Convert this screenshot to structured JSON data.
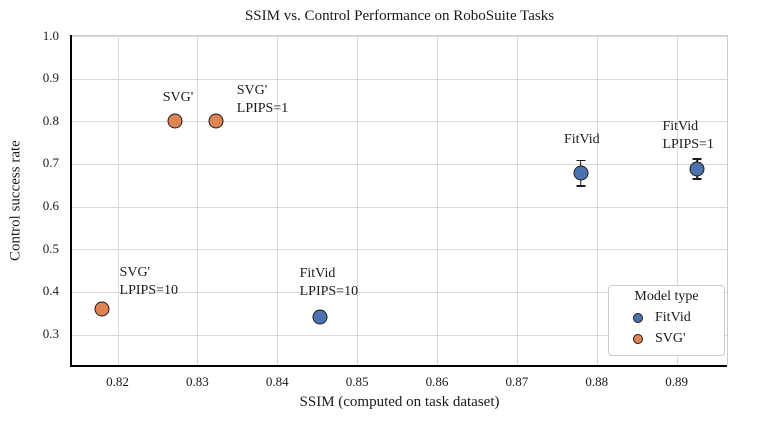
{
  "figure": {
    "title": "SSIM vs. Control Performance on RoboSuite Tasks",
    "xlabel": "SSIM (computed on task dataset)",
    "ylabel": "Control success rate"
  },
  "chart_data": {
    "type": "scatter",
    "title": "SSIM vs. Control Performance on RoboSuite Tasks",
    "xlabel": "SSIM (computed on task dataset)",
    "ylabel": "Control success rate",
    "xlim": [
      0.8143,
      0.8963
    ],
    "ylim": [
      0.2286,
      1.0
    ],
    "grid": true,
    "xticks": [
      0.82,
      0.83,
      0.84,
      0.85,
      0.86,
      0.87,
      0.88,
      0.89
    ],
    "xtick_labels": [
      "0.82",
      "0.83",
      "0.84",
      "0.85",
      "0.86",
      "0.87",
      "0.88",
      "0.89"
    ],
    "yticks": [
      0.3,
      0.4,
      0.5,
      0.6,
      0.7,
      0.8,
      0.9,
      1.0
    ],
    "ytick_labels": [
      "0.3",
      "0.4",
      "0.5",
      "0.6",
      "0.7",
      "0.8",
      "0.9",
      "1.0"
    ],
    "series": [
      {
        "name": "SVG'",
        "color": "#dd8452",
        "points": [
          {
            "x": 0.818,
            "y": 0.36,
            "yerr": 0,
            "label": "SVG'\nLPIPS=10",
            "label_align": "left",
            "label_dx": 18,
            "label_dy": -45
          },
          {
            "x": 0.8272,
            "y": 0.8,
            "yerr": 0,
            "label": "SVG'",
            "label_align": "center",
            "label_dx": 3,
            "label_dy": -32
          },
          {
            "x": 0.8323,
            "y": 0.8,
            "yerr": 0,
            "label": "SVG'\nLPIPS=1",
            "label_align": "left",
            "label_dx": 21,
            "label_dy": -39
          }
        ]
      },
      {
        "name": "FitVid",
        "color": "#4c72b0",
        "points": [
          {
            "x": 0.8453,
            "y": 0.34,
            "yerr": 0,
            "label": "FitVid\nLPIPS=10",
            "label_align": "left",
            "label_dx": -20,
            "label_dy": -52
          },
          {
            "x": 0.878,
            "y": 0.678,
            "yerr": 0.03,
            "label": "FitVid",
            "label_align": "center",
            "label_dx": 1,
            "label_dy": -42
          },
          {
            "x": 0.8926,
            "y": 0.688,
            "yerr": 0.023,
            "label": "FitVid\nLPIPS=1",
            "label_align": "left",
            "label_dx": -35,
            "label_dy": -51
          }
        ]
      }
    ],
    "legend": {
      "title": "Model type",
      "position": "lower right",
      "entries": [
        {
          "label": "FitVid",
          "color": "#4c72b0"
        },
        {
          "label": "SVG'",
          "color": "#dd8452"
        }
      ]
    },
    "colors": {
      "marker_edge": "#1c1c1c",
      "grid": "#d9d9d9",
      "spine_major": "#000000",
      "spine_minor": "#cccccc",
      "text": "#1a1a1a"
    }
  }
}
